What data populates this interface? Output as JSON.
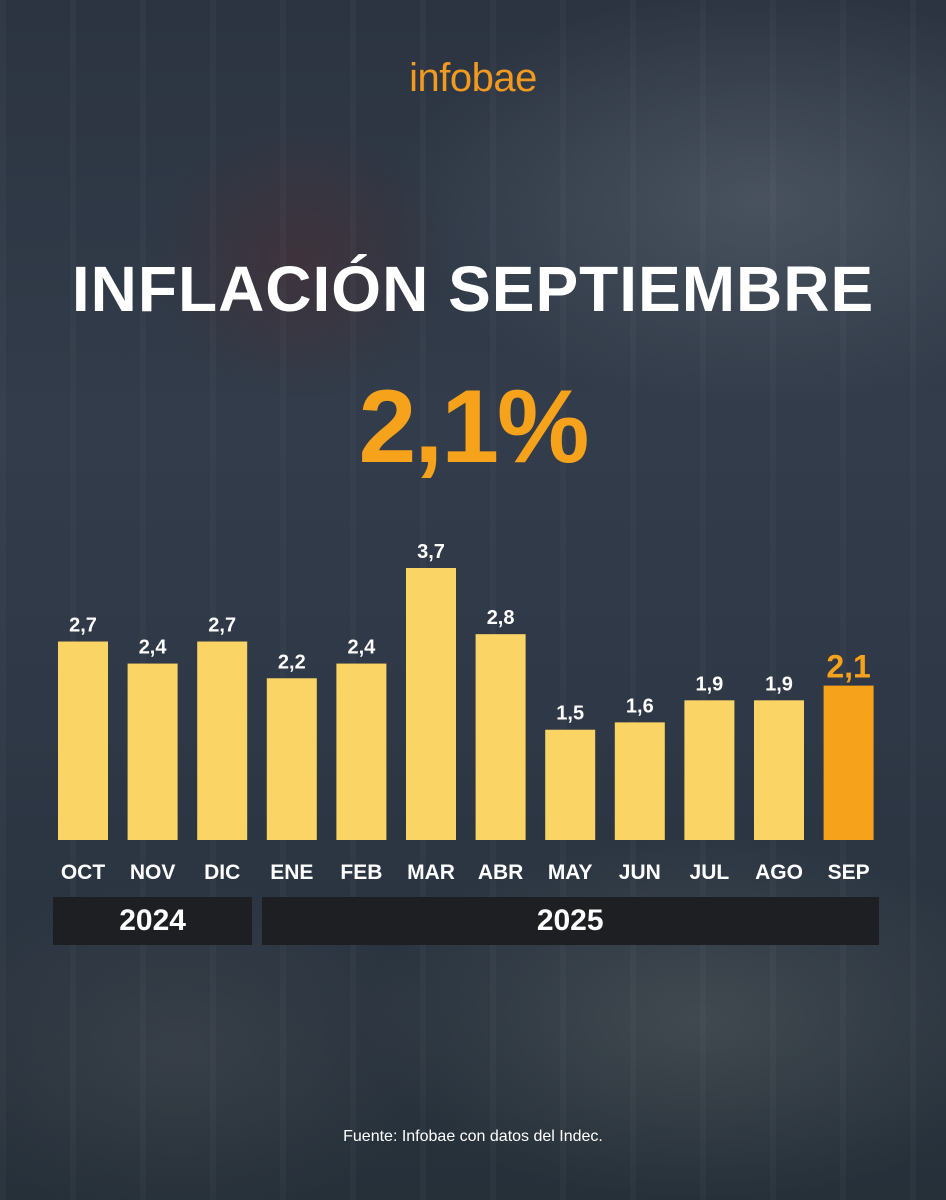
{
  "brand": {
    "logo_text": "infobae"
  },
  "headline": {
    "title": "INFLACIÓN SEPTIEMBRE",
    "value": "2,1%"
  },
  "colors": {
    "bar": "#fbd466",
    "highlight": "#f7a21b",
    "year_box": "#1d1f23"
  },
  "chart_data": {
    "type": "bar",
    "title": "INFLACIÓN SEPTIEMBRE",
    "categories": [
      "OCT",
      "NOV",
      "DIC",
      "ENE",
      "FEB",
      "MAR",
      "ABR",
      "MAY",
      "JUN",
      "JUL",
      "AGO",
      "SEP"
    ],
    "values": [
      2.7,
      2.4,
      2.7,
      2.2,
      2.4,
      3.7,
      2.8,
      1.5,
      1.6,
      1.9,
      1.9,
      2.1
    ],
    "value_labels": [
      "2,7",
      "2,4",
      "2,7",
      "2,2",
      "2,4",
      "3,7",
      "2,8",
      "1,5",
      "1,6",
      "1,9",
      "1,9",
      "2,1"
    ],
    "highlight_index": 11,
    "year_groups": [
      {
        "label": "2024",
        "first": 0,
        "last": 2
      },
      {
        "label": "2025",
        "first": 3,
        "last": 11
      }
    ],
    "xlabel": "",
    "ylabel": "",
    "ylim": [
      0,
      3.7
    ],
    "grid": false,
    "legend": "none"
  },
  "footer": {
    "source": "Fuente: Infobae con datos del Indec."
  }
}
